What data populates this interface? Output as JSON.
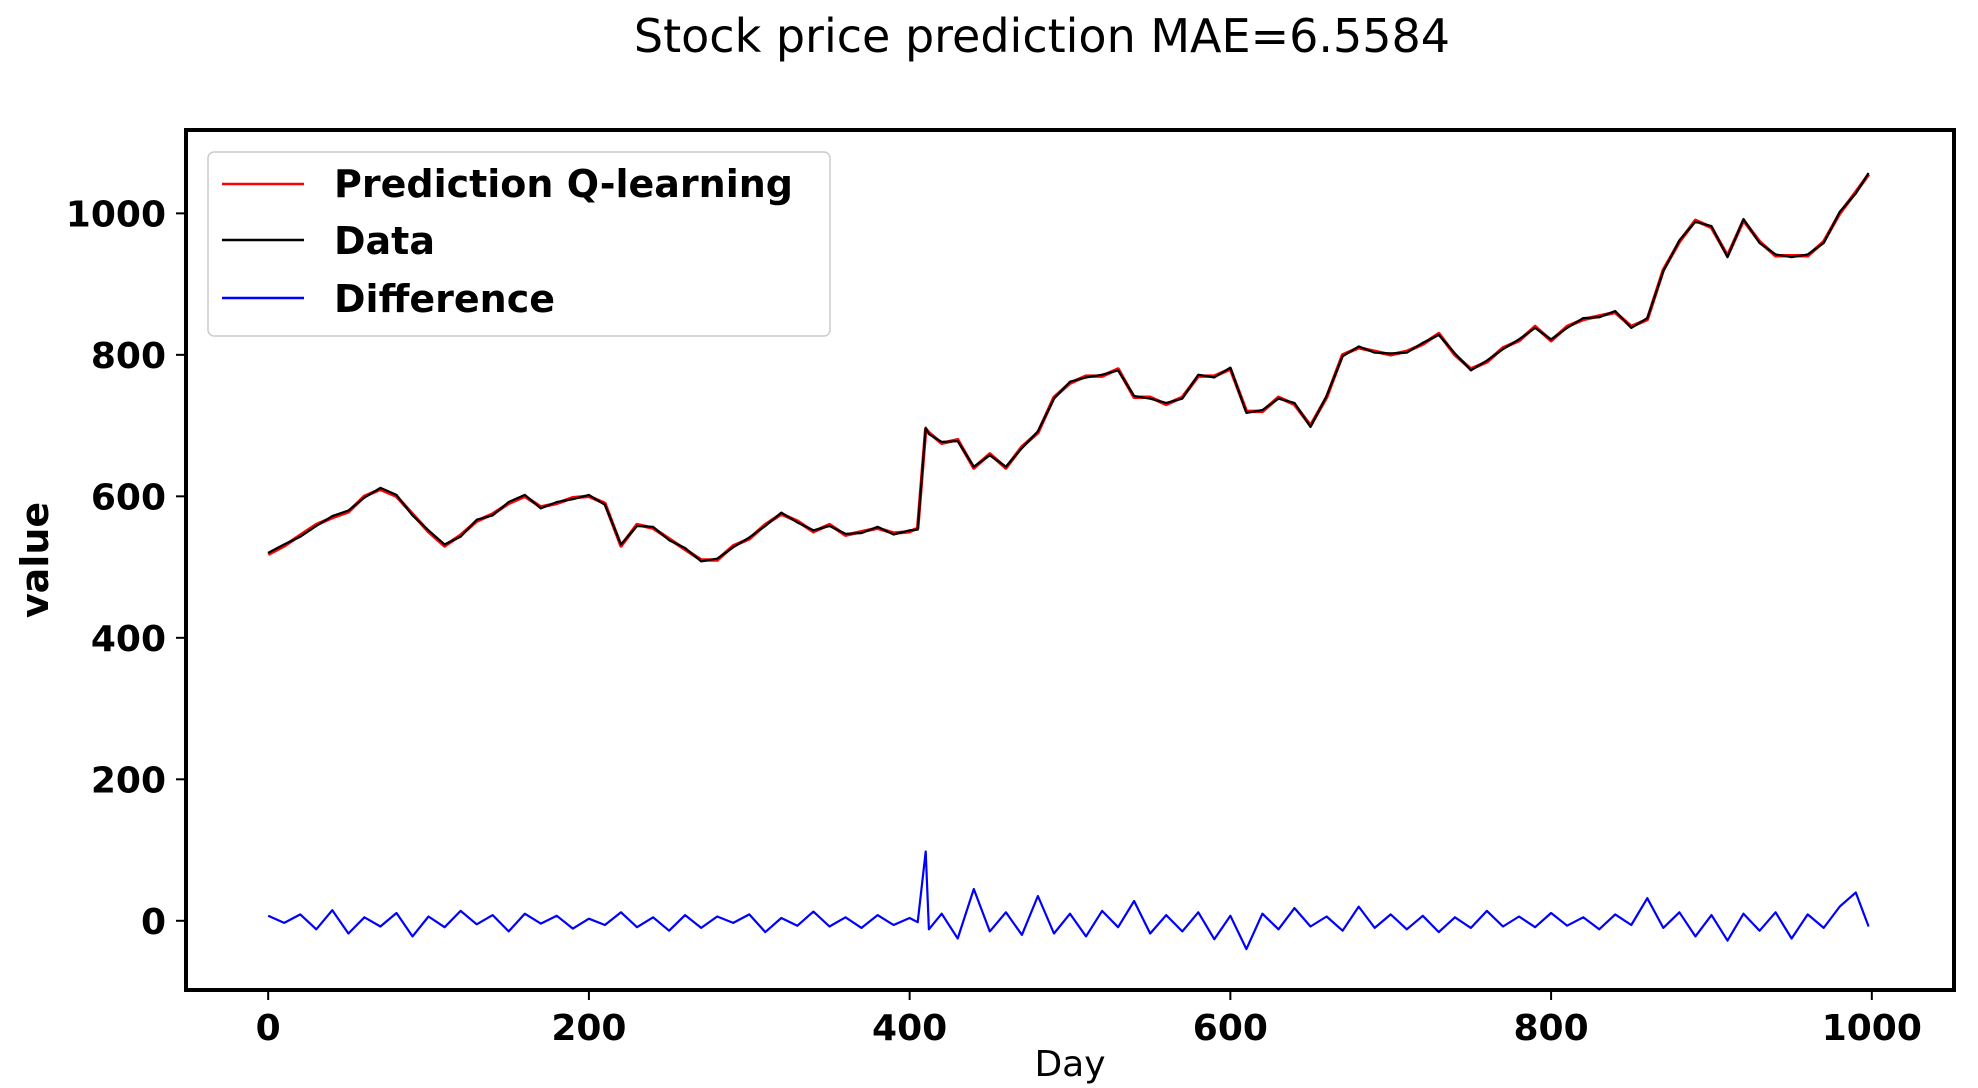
{
  "chart_data": {
    "type": "line",
    "title": "Stock price prediction MAE=6.5584",
    "xlabel": "Day",
    "ylabel": "value",
    "xlim": [
      -50,
      1050
    ],
    "ylim": [
      -95,
      1115
    ],
    "xticks": [
      0,
      200,
      400,
      600,
      800,
      1000
    ],
    "yticks": [
      0,
      200,
      400,
      600,
      800,
      1000
    ],
    "grid": false,
    "legend_placement": "top-left",
    "x": [
      0,
      10,
      20,
      30,
      40,
      50,
      60,
      70,
      80,
      90,
      100,
      110,
      120,
      130,
      140,
      150,
      160,
      170,
      180,
      190,
      200,
      210,
      220,
      230,
      240,
      250,
      260,
      270,
      280,
      290,
      300,
      310,
      320,
      330,
      340,
      350,
      360,
      370,
      380,
      390,
      400,
      405,
      410,
      412,
      420,
      430,
      440,
      450,
      460,
      470,
      480,
      490,
      500,
      510,
      520,
      530,
      540,
      550,
      560,
      570,
      580,
      590,
      600,
      610,
      620,
      630,
      640,
      650,
      660,
      670,
      680,
      690,
      700,
      710,
      720,
      730,
      740,
      750,
      760,
      770,
      780,
      790,
      800,
      810,
      820,
      830,
      840,
      850,
      860,
      870,
      880,
      890,
      900,
      910,
      920,
      930,
      940,
      950,
      960,
      970,
      980,
      990,
      998
    ],
    "series": [
      {
        "name": "Prediction Q-learning",
        "color": "#ff0000",
        "values": [
          518,
          530,
          545,
          560,
          570,
          578,
          600,
          610,
          600,
          575,
          550,
          530,
          545,
          565,
          575,
          590,
          600,
          585,
          590,
          598,
          600,
          590,
          530,
          560,
          555,
          540,
          525,
          510,
          510,
          530,
          540,
          560,
          575,
          565,
          550,
          560,
          545,
          550,
          555,
          548,
          550,
          555,
          695,
          690,
          675,
          680,
          640,
          660,
          640,
          670,
          690,
          740,
          760,
          770,
          770,
          780,
          740,
          740,
          730,
          740,
          770,
          770,
          780,
          720,
          720,
          740,
          730,
          700,
          740,
          800,
          810,
          805,
          800,
          805,
          815,
          830,
          800,
          780,
          790,
          810,
          820,
          840,
          820,
          840,
          850,
          855,
          860,
          840,
          850,
          920,
          960,
          990,
          980,
          940,
          990,
          960,
          940,
          940,
          940,
          960,
          1000,
          1030,
          1055
        ]
      },
      {
        "name": "Data",
        "color": "#000000",
        "values": [
          520,
          532,
          543,
          558,
          572,
          580,
          598,
          612,
          602,
          573,
          552,
          532,
          543,
          567,
          573,
          592,
          602,
          583,
          592,
          596,
          602,
          588,
          532,
          558,
          557,
          538,
          527,
          508,
          512,
          528,
          542,
          558,
          577,
          563,
          552,
          558,
          547,
          548,
          557,
          546,
          552,
          553,
          697,
          688,
          677,
          678,
          642,
          658,
          642,
          668,
          692,
          738,
          762,
          768,
          772,
          778,
          742,
          738,
          732,
          738,
          772,
          768,
          782,
          718,
          722,
          738,
          732,
          698,
          742,
          798,
          812,
          803,
          802,
          803,
          817,
          828,
          802,
          778,
          792,
          808,
          822,
          838,
          822,
          838,
          852,
          853,
          862,
          838,
          852,
          918,
          962,
          988,
          982,
          938,
          992,
          958,
          942,
          938,
          942,
          958,
          1002,
          1028,
          1057
        ]
      },
      {
        "name": "Difference",
        "color": "#0000ff",
        "values": [
          7,
          -3,
          9,
          -12,
          15,
          -18,
          5,
          -8,
          11,
          -22,
          6,
          -9,
          14,
          -5,
          8,
          -15,
          10,
          -4,
          7,
          -11,
          3,
          -6,
          12,
          -9,
          5,
          -14,
          8,
          -10,
          6,
          -3,
          9,
          -16,
          4,
          -7,
          13,
          -8,
          5,
          -10,
          8,
          -6,
          4,
          -2,
          98,
          -12,
          10,
          -25,
          45,
          -15,
          12,
          -20,
          35,
          -18,
          10,
          -22,
          14,
          -9,
          28,
          -18,
          8,
          -15,
          12,
          -26,
          7,
          -40,
          10,
          -12,
          18,
          -8,
          6,
          -14,
          20,
          -10,
          9,
          -12,
          7,
          -16,
          5,
          -10,
          14,
          -8,
          6,
          -9,
          11,
          -7,
          5,
          -12,
          9,
          -6,
          32,
          -10,
          12,
          -22,
          8,
          -28,
          10,
          -14,
          12,
          -25,
          9,
          -10,
          20,
          40,
          -8
        ]
      }
    ]
  }
}
